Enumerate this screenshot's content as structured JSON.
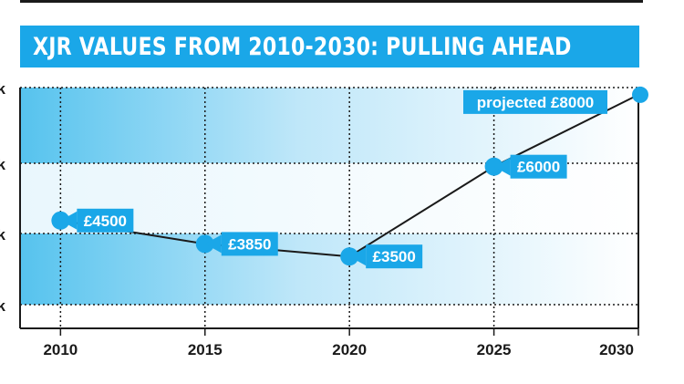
{
  "title": "XJR VALUES FROM 2010-2030: PULLING AHEAD",
  "colors": {
    "accent": "#1aa7e8",
    "band_dark": "#56c3ee",
    "band_light": "#e6f5fc",
    "line": "#1a1a1a"
  },
  "chart_data": {
    "type": "line",
    "title": "XJR VALUES FROM 2010-2030: PULLING AHEAD",
    "xlabel": "",
    "ylabel": "",
    "x": [
      2010,
      2015,
      2020,
      2025,
      2030
    ],
    "x_tick_labels": [
      "2010",
      "2015",
      "2020",
      "2025",
      "2030"
    ],
    "y_tick_labels": [
      "k",
      "k",
      "k",
      "k"
    ],
    "xlim": [
      2008.6,
      2030
    ],
    "ylim": [
      1500,
      8200
    ],
    "grid": true,
    "series": [
      {
        "values": [
          4500,
          3850,
          3500,
          6000,
          8000
        ],
        "labels": [
          "£4500",
          "£3850",
          "£3500",
          "£6000",
          "projected £8000"
        ]
      }
    ]
  }
}
